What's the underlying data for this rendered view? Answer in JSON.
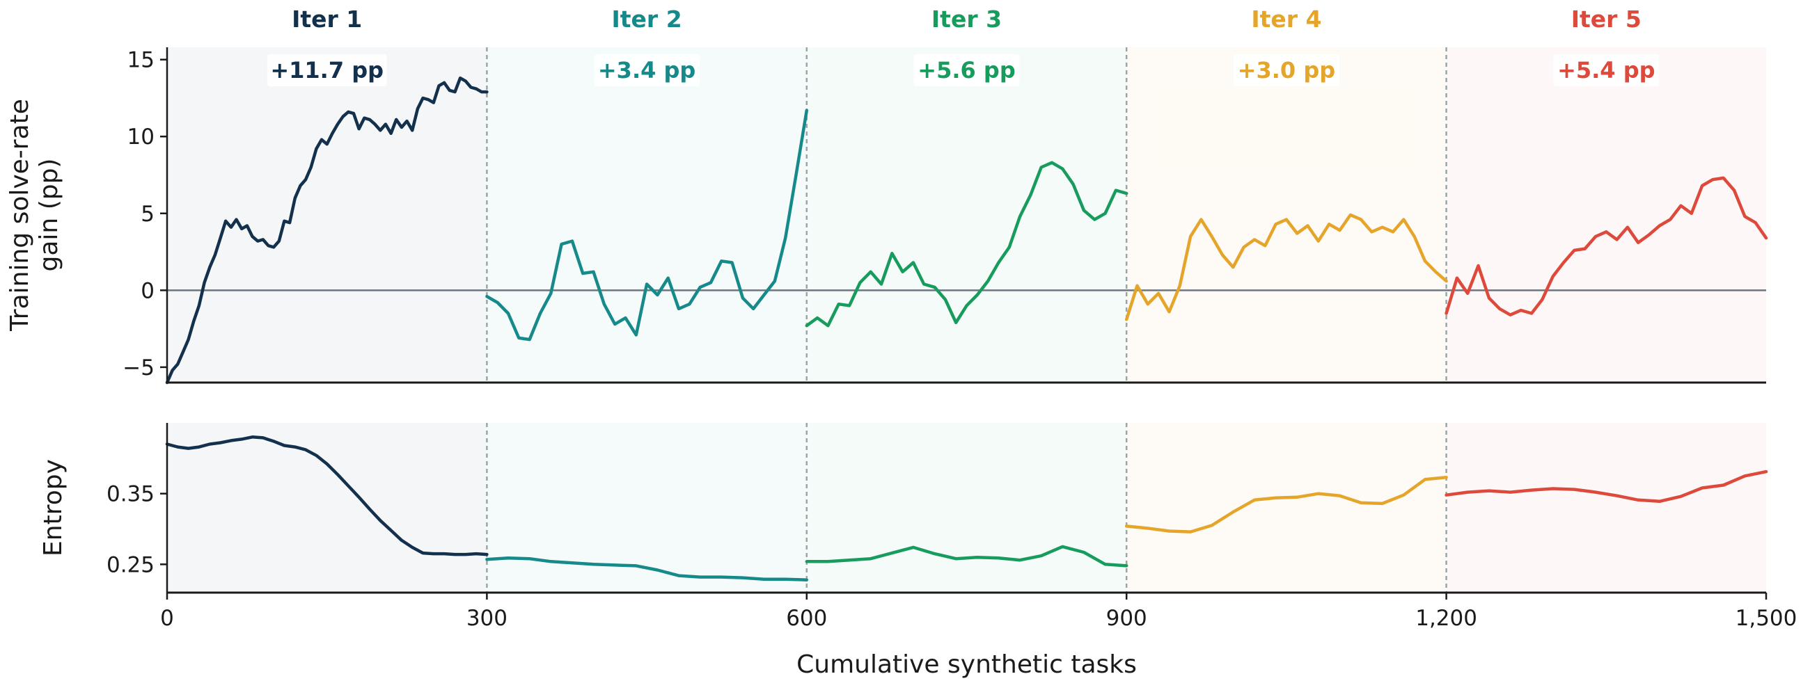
{
  "chart_data": {
    "type": "line",
    "xlabel": "Cumulative synthetic tasks",
    "xlim": [
      0,
      1500
    ],
    "x_ticks": [
      "0",
      "300",
      "600",
      "900",
      "1,200",
      "1,500"
    ],
    "x_tick_values": [
      0,
      300,
      600,
      900,
      1200,
      1500
    ],
    "iteration_boundaries": [
      300,
      600,
      900,
      1200
    ],
    "iterations": [
      {
        "name": "Iter 1",
        "gain_label": "+11.7 pp",
        "color": "#13304d",
        "range": [
          0,
          300
        ]
      },
      {
        "name": "Iter 2",
        "gain_label": "+3.4 pp",
        "color": "#168a8a",
        "range": [
          300,
          600
        ]
      },
      {
        "name": "Iter 3",
        "gain_label": "+5.6 pp",
        "color": "#189c5e",
        "range": [
          600,
          900
        ]
      },
      {
        "name": "Iter 4",
        "gain_label": "+3.0 pp",
        "color": "#e5a52a",
        "range": [
          900,
          1200
        ]
      },
      {
        "name": "Iter 5",
        "gain_label": "+5.4 pp",
        "color": "#dd4a3c",
        "range": [
          1200,
          1500
        ]
      }
    ],
    "panels": [
      {
        "name": "gain",
        "ylabel_lines": [
          "Training solve-rate",
          "gain (pp)"
        ],
        "ylim": [
          -6,
          15.8
        ],
        "y_ticks": [
          {
            "value": 15,
            "label": "15"
          },
          {
            "value": 10,
            "label": "10"
          },
          {
            "value": 5,
            "label": "5"
          },
          {
            "value": 0,
            "label": "0"
          },
          {
            "value": -5,
            "label": "−5"
          }
        ],
        "zero_line": 0,
        "series": [
          {
            "x": [
              0,
              5,
              10,
              15,
              20,
              25,
              30,
              35,
              40,
              45,
              50,
              55,
              60,
              65,
              70,
              75,
              80,
              85,
              90,
              95,
              100,
              105,
              110,
              115,
              120,
              125,
              130,
              135,
              140,
              145,
              150,
              155,
              160,
              165,
              170,
              175,
              180,
              185,
              190,
              195,
              200,
              205,
              210,
              215,
              220,
              225,
              230,
              235,
              240,
              245,
              250,
              255,
              260,
              265,
              270,
              275,
              280,
              285,
              290,
              295,
              300
            ],
            "y": [
              -6,
              -5.2,
              -4.8,
              -4,
              -3.2,
              -2,
              -1,
              0.5,
              1.5,
              2.3,
              3.4,
              4.5,
              4.1,
              4.6,
              4.0,
              4.2,
              3.5,
              3.2,
              3.3,
              2.9,
              2.8,
              3.2,
              4.5,
              4.4,
              6.0,
              6.8,
              7.2,
              8.0,
              9.2,
              9.8,
              9.5,
              10.2,
              10.8,
              11.3,
              11.6,
              11.5,
              10.5,
              11.2,
              11.1,
              10.8,
              10.4,
              10.8,
              10.2,
              11.1,
              10.6,
              11.0,
              10.4,
              11.8,
              12.5,
              12.4,
              12.2,
              13.3,
              13.5,
              13.0,
              12.9,
              13.8,
              13.6,
              13.2,
              13.1,
              12.9,
              12.9
            ]
          },
          {
            "x": [
              300,
              310,
              320,
              330,
              340,
              350,
              360,
              370,
              380,
              390,
              400,
              410,
              420,
              430,
              440,
              450,
              460,
              470,
              480,
              490,
              500,
              510,
              520,
              530,
              540,
              550,
              560,
              570,
              580,
              590,
              600
            ],
            "y": [
              -0.4,
              -0.8,
              -1.5,
              -3.1,
              -3.2,
              -1.5,
              -0.2,
              3.0,
              3.2,
              1.1,
              1.2,
              -0.9,
              -2.2,
              -1.8,
              -2.9,
              0.4,
              -0.3,
              0.8,
              -1.2,
              -0.9,
              0.2,
              0.5,
              1.9,
              1.8,
              -0.5,
              -1.2,
              -0.3,
              0.6,
              3.4,
              7.5,
              11.7
            ]
          },
          {
            "x": [
              600,
              610,
              620,
              630,
              640,
              650,
              660,
              670,
              680,
              690,
              700,
              710,
              720,
              730,
              740,
              750,
              760,
              770,
              780,
              790,
              800,
              810,
              820,
              830,
              840,
              850,
              860,
              870,
              880,
              890,
              900
            ],
            "y": [
              -2.3,
              -1.8,
              -2.3,
              -0.9,
              -1.0,
              0.5,
              1.2,
              0.4,
              2.4,
              1.2,
              1.8,
              0.4,
              0.2,
              -0.6,
              -2.1,
              -1.0,
              -0.3,
              0.6,
              1.8,
              2.8,
              4.8,
              6.2,
              8.0,
              8.3,
              7.9,
              6.9,
              5.2,
              4.6,
              5.0,
              6.5,
              6.3
            ]
          },
          {
            "x": [
              900,
              910,
              920,
              930,
              940,
              950,
              960,
              970,
              980,
              990,
              1000,
              1010,
              1020,
              1030,
              1040,
              1050,
              1060,
              1070,
              1080,
              1090,
              1100,
              1110,
              1120,
              1130,
              1140,
              1150,
              1160,
              1170,
              1180,
              1190,
              1200
            ],
            "y": [
              -1.9,
              0.3,
              -0.9,
              -0.2,
              -1.4,
              0.3,
              3.5,
              4.6,
              3.5,
              2.3,
              1.5,
              2.8,
              3.3,
              2.9,
              4.3,
              4.6,
              3.7,
              4.2,
              3.2,
              4.3,
              3.9,
              4.9,
              4.6,
              3.8,
              4.1,
              3.8,
              4.6,
              3.5,
              1.9,
              1.2,
              0.6
            ]
          },
          {
            "x": [
              1200,
              1210,
              1220,
              1230,
              1240,
              1250,
              1260,
              1270,
              1280,
              1290,
              1300,
              1310,
              1320,
              1330,
              1340,
              1350,
              1360,
              1370,
              1380,
              1390,
              1400,
              1410,
              1420,
              1430,
              1440,
              1450,
              1460,
              1470,
              1480,
              1490,
              1500
            ],
            "y": [
              -1.5,
              0.8,
              -0.2,
              1.6,
              -0.5,
              -1.2,
              -1.6,
              -1.3,
              -1.5,
              -0.6,
              0.9,
              1.8,
              2.6,
              2.7,
              3.5,
              3.8,
              3.3,
              4.1,
              3.1,
              3.6,
              4.2,
              4.6,
              5.5,
              5.0,
              6.8,
              7.2,
              7.3,
              6.5,
              4.8,
              4.4,
              3.4
            ]
          }
        ]
      },
      {
        "name": "entropy",
        "ylabel_lines": [
          "Entropy"
        ],
        "ylim": [
          0.21,
          0.45
        ],
        "y_ticks": [
          {
            "value": 0.35,
            "label": "0.35"
          },
          {
            "value": 0.25,
            "label": "0.25"
          }
        ],
        "series": [
          {
            "x": [
              0,
              10,
              20,
              30,
              40,
              50,
              60,
              70,
              80,
              90,
              100,
              110,
              120,
              130,
              140,
              150,
              160,
              170,
              180,
              190,
              200,
              210,
              220,
              230,
              240,
              250,
              260,
              270,
              280,
              290,
              300
            ],
            "y": [
              0.42,
              0.416,
              0.414,
              0.416,
              0.42,
              0.422,
              0.425,
              0.427,
              0.43,
              0.429,
              0.424,
              0.418,
              0.416,
              0.412,
              0.404,
              0.392,
              0.377,
              0.361,
              0.345,
              0.328,
              0.312,
              0.298,
              0.284,
              0.274,
              0.266,
              0.265,
              0.265,
              0.264,
              0.264,
              0.265,
              0.264
            ]
          },
          {
            "x": [
              300,
              320,
              340,
              360,
              380,
              400,
              420,
              440,
              460,
              480,
              500,
              520,
              540,
              560,
              580,
              600
            ],
            "y": [
              0.257,
              0.259,
              0.258,
              0.254,
              0.252,
              0.25,
              0.249,
              0.248,
              0.242,
              0.234,
              0.232,
              0.232,
              0.231,
              0.229,
              0.229,
              0.228
            ]
          },
          {
            "x": [
              600,
              620,
              640,
              660,
              680,
              700,
              720,
              740,
              760,
              780,
              800,
              820,
              840,
              860,
              880,
              900
            ],
            "y": [
              0.254,
              0.254,
              0.256,
              0.258,
              0.266,
              0.274,
              0.265,
              0.258,
              0.26,
              0.259,
              0.256,
              0.262,
              0.275,
              0.267,
              0.25,
              0.248
            ]
          },
          {
            "x": [
              900,
              920,
              940,
              960,
              980,
              1000,
              1020,
              1040,
              1060,
              1080,
              1100,
              1120,
              1140,
              1160,
              1180,
              1200
            ],
            "y": [
              0.304,
              0.301,
              0.297,
              0.296,
              0.305,
              0.324,
              0.341,
              0.344,
              0.345,
              0.35,
              0.347,
              0.337,
              0.336,
              0.348,
              0.37,
              0.373
            ]
          },
          {
            "x": [
              1200,
              1220,
              1240,
              1260,
              1280,
              1300,
              1320,
              1340,
              1360,
              1380,
              1400,
              1420,
              1440,
              1460,
              1480,
              1500
            ],
            "y": [
              0.348,
              0.352,
              0.354,
              0.352,
              0.355,
              0.357,
              0.356,
              0.352,
              0.347,
              0.341,
              0.339,
              0.346,
              0.358,
              0.362,
              0.375,
              0.381
            ]
          }
        ]
      }
    ]
  }
}
